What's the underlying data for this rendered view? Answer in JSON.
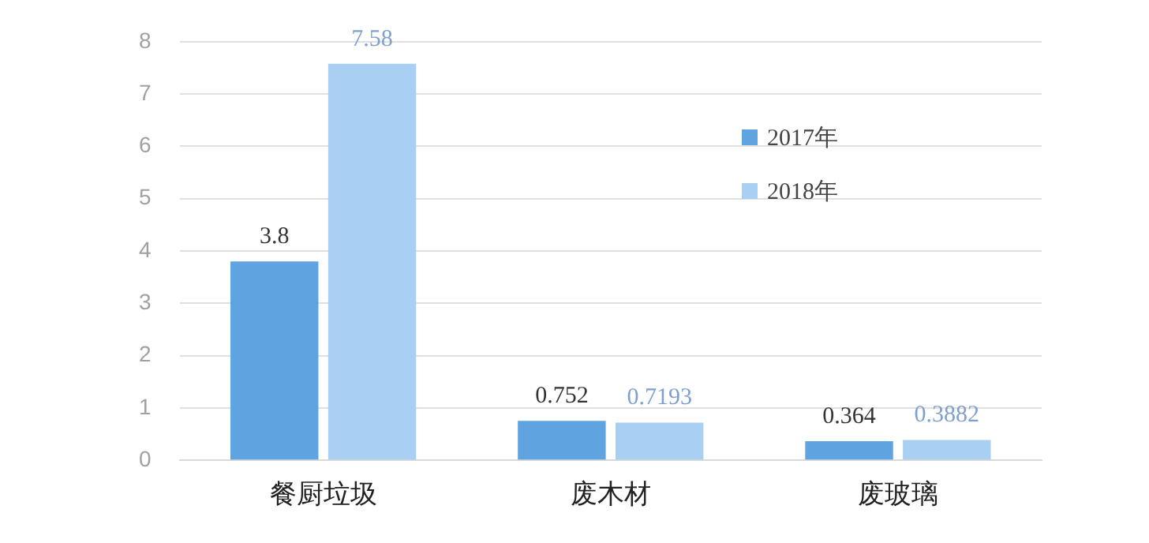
{
  "chart_data": {
    "type": "bar",
    "categories": [
      "餐厨垃圾",
      "废木材",
      "废玻璃"
    ],
    "series": [
      {
        "name": "2017年",
        "color": "#5fa3e0",
        "values": [
          3.8,
          0.752,
          0.364
        ]
      },
      {
        "name": "2018年",
        "color": "#a9cff2",
        "values": [
          7.58,
          0.7193,
          0.3882
        ]
      }
    ],
    "ylim": [
      0,
      8
    ],
    "yticks": [
      0,
      1,
      2,
      3,
      4,
      5,
      6,
      7,
      8
    ],
    "grid": "y",
    "legend": "top right",
    "data_labels": true
  }
}
